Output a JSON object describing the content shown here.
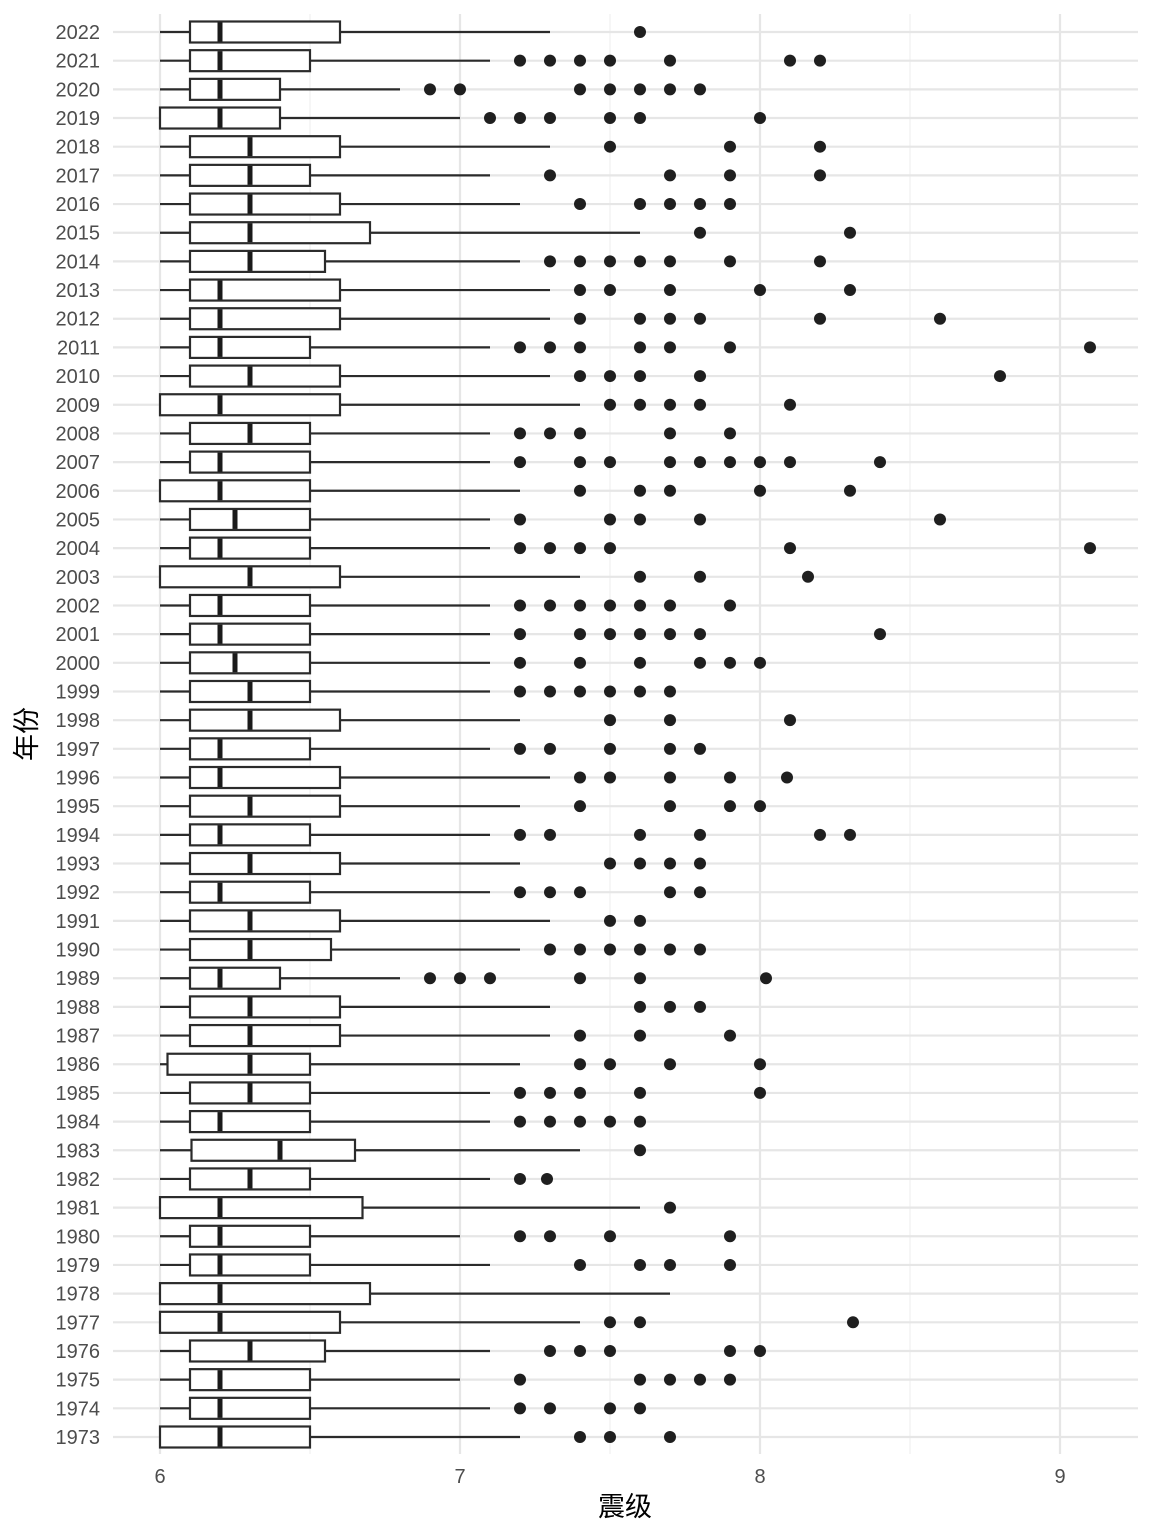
{
  "chart_data": {
    "type": "boxplot",
    "orientation": "horizontal",
    "title": "",
    "xlabel": "震级",
    "ylabel": "年份",
    "xlim": [
      5.85,
      9.25
    ],
    "x_ticks": [
      "6",
      "7",
      "8",
      "9"
    ],
    "grid": true,
    "legend": "none",
    "colors": {
      "box_fill": "#ffffff",
      "box_stroke": "#2b2b2b",
      "outlier": "#1f1f1f",
      "grid": "#e6e6e6"
    },
    "boxes": [
      {
        "year": "2022",
        "min": 6.0,
        "q1": 6.1,
        "median": 6.2,
        "q3": 6.6,
        "max": 7.3,
        "outliers": [
          7.6
        ]
      },
      {
        "year": "2021",
        "min": 6.0,
        "q1": 6.1,
        "median": 6.2,
        "q3": 6.5,
        "max": 7.1,
        "outliers": [
          7.2,
          7.3,
          7.4,
          7.5,
          7.7,
          8.1,
          8.2
        ]
      },
      {
        "year": "2020",
        "min": 6.0,
        "q1": 6.1,
        "median": 6.2,
        "q3": 6.4,
        "max": 6.8,
        "outliers": [
          6.9,
          7.0,
          7.4,
          7.5,
          7.6,
          7.7,
          7.8
        ]
      },
      {
        "year": "2019",
        "min": 6.0,
        "q1": 6.0,
        "median": 6.2,
        "q3": 6.4,
        "max": 7.0,
        "outliers": [
          7.1,
          7.2,
          7.3,
          7.5,
          7.6,
          8.0
        ]
      },
      {
        "year": "2018",
        "min": 6.0,
        "q1": 6.1,
        "median": 6.3,
        "q3": 6.6,
        "max": 7.3,
        "outliers": [
          7.5,
          7.9,
          8.2
        ]
      },
      {
        "year": "2017",
        "min": 6.0,
        "q1": 6.1,
        "median": 6.3,
        "q3": 6.5,
        "max": 7.1,
        "outliers": [
          7.3,
          7.7,
          7.9,
          8.2
        ]
      },
      {
        "year": "2016",
        "min": 6.0,
        "q1": 6.1,
        "median": 6.3,
        "q3": 6.6,
        "max": 7.2,
        "outliers": [
          7.4,
          7.6,
          7.7,
          7.8,
          7.9
        ]
      },
      {
        "year": "2015",
        "min": 6.0,
        "q1": 6.1,
        "median": 6.3,
        "q3": 6.7,
        "max": 7.6,
        "outliers": [
          7.8,
          8.3
        ]
      },
      {
        "year": "2014",
        "min": 6.0,
        "q1": 6.1,
        "median": 6.3,
        "q3": 6.55,
        "max": 7.2,
        "outliers": [
          7.3,
          7.4,
          7.5,
          7.6,
          7.7,
          7.9,
          8.2
        ]
      },
      {
        "year": "2013",
        "min": 6.0,
        "q1": 6.1,
        "median": 6.2,
        "q3": 6.6,
        "max": 7.3,
        "outliers": [
          7.4,
          7.5,
          7.7,
          8.0,
          8.3
        ]
      },
      {
        "year": "2012",
        "min": 6.0,
        "q1": 6.1,
        "median": 6.2,
        "q3": 6.6,
        "max": 7.3,
        "outliers": [
          7.4,
          7.6,
          7.7,
          7.8,
          8.2,
          8.6
        ]
      },
      {
        "year": "2011",
        "min": 6.0,
        "q1": 6.1,
        "median": 6.2,
        "q3": 6.5,
        "max": 7.1,
        "outliers": [
          7.2,
          7.3,
          7.4,
          7.6,
          7.7,
          7.9,
          9.1
        ]
      },
      {
        "year": "2010",
        "min": 6.0,
        "q1": 6.1,
        "median": 6.3,
        "q3": 6.6,
        "max": 7.3,
        "outliers": [
          7.4,
          7.5,
          7.6,
          7.8,
          8.8
        ]
      },
      {
        "year": "2009",
        "min": 6.0,
        "q1": 6.0,
        "median": 6.2,
        "q3": 6.6,
        "max": 7.4,
        "outliers": [
          7.5,
          7.6,
          7.7,
          7.8,
          8.1
        ]
      },
      {
        "year": "2008",
        "min": 6.0,
        "q1": 6.1,
        "median": 6.3,
        "q3": 6.5,
        "max": 7.1,
        "outliers": [
          7.2,
          7.3,
          7.4,
          7.7,
          7.9
        ]
      },
      {
        "year": "2007",
        "min": 6.0,
        "q1": 6.1,
        "median": 6.2,
        "q3": 6.5,
        "max": 7.1,
        "outliers": [
          7.2,
          7.4,
          7.5,
          7.7,
          7.8,
          7.9,
          8.0,
          8.1,
          8.4
        ]
      },
      {
        "year": "2006",
        "min": 6.0,
        "q1": 6.0,
        "median": 6.2,
        "q3": 6.5,
        "max": 7.2,
        "outliers": [
          7.4,
          7.6,
          7.7,
          8.0,
          8.3
        ]
      },
      {
        "year": "2005",
        "min": 6.0,
        "q1": 6.1,
        "median": 6.25,
        "q3": 6.5,
        "max": 7.1,
        "outliers": [
          7.2,
          7.5,
          7.6,
          7.8,
          8.6
        ]
      },
      {
        "year": "2004",
        "min": 6.0,
        "q1": 6.1,
        "median": 6.2,
        "q3": 6.5,
        "max": 7.1,
        "outliers": [
          7.2,
          7.3,
          7.4,
          7.5,
          8.1,
          9.1
        ]
      },
      {
        "year": "2003",
        "min": 6.0,
        "q1": 6.0,
        "median": 6.3,
        "q3": 6.6,
        "max": 7.4,
        "outliers": [
          7.6,
          7.8,
          8.16
        ]
      },
      {
        "year": "2002",
        "min": 6.0,
        "q1": 6.1,
        "median": 6.2,
        "q3": 6.5,
        "max": 7.1,
        "outliers": [
          7.2,
          7.3,
          7.4,
          7.5,
          7.6,
          7.7,
          7.9
        ]
      },
      {
        "year": "2001",
        "min": 6.0,
        "q1": 6.1,
        "median": 6.2,
        "q3": 6.5,
        "max": 7.1,
        "outliers": [
          7.2,
          7.4,
          7.5,
          7.6,
          7.7,
          7.8,
          8.4
        ]
      },
      {
        "year": "2000",
        "min": 6.0,
        "q1": 6.1,
        "median": 6.25,
        "q3": 6.5,
        "max": 7.1,
        "outliers": [
          7.2,
          7.4,
          7.6,
          7.8,
          7.9,
          8.0
        ]
      },
      {
        "year": "1999",
        "min": 6.0,
        "q1": 6.1,
        "median": 6.3,
        "q3": 6.5,
        "max": 7.1,
        "outliers": [
          7.2,
          7.3,
          7.4,
          7.5,
          7.6,
          7.7
        ]
      },
      {
        "year": "1998",
        "min": 6.0,
        "q1": 6.1,
        "median": 6.3,
        "q3": 6.6,
        "max": 7.2,
        "outliers": [
          7.5,
          7.7,
          8.1
        ]
      },
      {
        "year": "1997",
        "min": 6.0,
        "q1": 6.1,
        "median": 6.2,
        "q3": 6.5,
        "max": 7.1,
        "outliers": [
          7.2,
          7.3,
          7.5,
          7.7,
          7.8
        ]
      },
      {
        "year": "1996",
        "min": 6.0,
        "q1": 6.1,
        "median": 6.2,
        "q3": 6.6,
        "max": 7.3,
        "outliers": [
          7.4,
          7.5,
          7.7,
          7.9,
          8.09
        ]
      },
      {
        "year": "1995",
        "min": 6.0,
        "q1": 6.1,
        "median": 6.3,
        "q3": 6.6,
        "max": 7.2,
        "outliers": [
          7.4,
          7.7,
          7.9,
          8.0
        ]
      },
      {
        "year": "1994",
        "min": 6.0,
        "q1": 6.1,
        "median": 6.2,
        "q3": 6.5,
        "max": 7.1,
        "outliers": [
          7.2,
          7.3,
          7.6,
          7.8,
          8.2,
          8.3
        ]
      },
      {
        "year": "1993",
        "min": 6.0,
        "q1": 6.1,
        "median": 6.3,
        "q3": 6.6,
        "max": 7.2,
        "outliers": [
          7.5,
          7.6,
          7.7,
          7.8
        ]
      },
      {
        "year": "1992",
        "min": 6.0,
        "q1": 6.1,
        "median": 6.2,
        "q3": 6.5,
        "max": 7.1,
        "outliers": [
          7.2,
          7.3,
          7.4,
          7.7,
          7.8
        ]
      },
      {
        "year": "1991",
        "min": 6.0,
        "q1": 6.1,
        "median": 6.3,
        "q3": 6.6,
        "max": 7.3,
        "outliers": [
          7.5,
          7.6
        ]
      },
      {
        "year": "1990",
        "min": 6.0,
        "q1": 6.1,
        "median": 6.3,
        "q3": 6.57,
        "max": 7.2,
        "outliers": [
          7.3,
          7.4,
          7.5,
          7.6,
          7.7,
          7.8
        ]
      },
      {
        "year": "1989",
        "min": 6.0,
        "q1": 6.1,
        "median": 6.2,
        "q3": 6.4,
        "max": 6.8,
        "outliers": [
          6.9,
          7.0,
          7.1,
          7.4,
          7.6,
          8.02
        ]
      },
      {
        "year": "1988",
        "min": 6.0,
        "q1": 6.1,
        "median": 6.3,
        "q3": 6.6,
        "max": 7.3,
        "outliers": [
          7.6,
          7.7,
          7.8
        ]
      },
      {
        "year": "1987",
        "min": 6.0,
        "q1": 6.1,
        "median": 6.3,
        "q3": 6.6,
        "max": 7.3,
        "outliers": [
          7.4,
          7.6,
          7.9
        ]
      },
      {
        "year": "1986",
        "min": 6.0,
        "q1": 6.025,
        "median": 6.3,
        "q3": 6.5,
        "max": 7.2,
        "outliers": [
          7.4,
          7.5,
          7.7,
          8.0
        ]
      },
      {
        "year": "1985",
        "min": 6.0,
        "q1": 6.1,
        "median": 6.3,
        "q3": 6.5,
        "max": 7.1,
        "outliers": [
          7.2,
          7.3,
          7.4,
          7.6,
          8.0
        ]
      },
      {
        "year": "1984",
        "min": 6.0,
        "q1": 6.1,
        "median": 6.2,
        "q3": 6.5,
        "max": 7.1,
        "outliers": [
          7.2,
          7.3,
          7.4,
          7.5,
          7.6
        ]
      },
      {
        "year": "1983",
        "min": 6.0,
        "q1": 6.105,
        "median": 6.4,
        "q3": 6.65,
        "max": 7.4,
        "outliers": [
          7.6
        ]
      },
      {
        "year": "1982",
        "min": 6.0,
        "q1": 6.1,
        "median": 6.3,
        "q3": 6.5,
        "max": 7.1,
        "outliers": [
          7.2,
          7.29
        ]
      },
      {
        "year": "1981",
        "min": 6.0,
        "q1": 6.0,
        "median": 6.2,
        "q3": 6.675,
        "max": 7.6,
        "outliers": [
          7.7
        ]
      },
      {
        "year": "1980",
        "min": 6.0,
        "q1": 6.1,
        "median": 6.2,
        "q3": 6.5,
        "max": 7.0,
        "outliers": [
          7.2,
          7.3,
          7.5,
          7.9
        ]
      },
      {
        "year": "1979",
        "min": 6.0,
        "q1": 6.1,
        "median": 6.2,
        "q3": 6.5,
        "max": 7.1,
        "outliers": [
          7.4,
          7.6,
          7.7,
          7.9
        ]
      },
      {
        "year": "1978",
        "min": 6.0,
        "q1": 6.0,
        "median": 6.2,
        "q3": 6.7,
        "max": 7.7,
        "outliers": []
      },
      {
        "year": "1977",
        "min": 6.0,
        "q1": 6.0,
        "median": 6.2,
        "q3": 6.6,
        "max": 7.4,
        "outliers": [
          7.5,
          7.6,
          8.31
        ]
      },
      {
        "year": "1976",
        "min": 6.0,
        "q1": 6.1,
        "median": 6.3,
        "q3": 6.55,
        "max": 7.1,
        "outliers": [
          7.3,
          7.4,
          7.5,
          7.9,
          8.0
        ]
      },
      {
        "year": "1975",
        "min": 6.0,
        "q1": 6.1,
        "median": 6.2,
        "q3": 6.5,
        "max": 7.0,
        "outliers": [
          7.2,
          7.6,
          7.7,
          7.8,
          7.9
        ]
      },
      {
        "year": "1974",
        "min": 6.0,
        "q1": 6.1,
        "median": 6.2,
        "q3": 6.5,
        "max": 7.1,
        "outliers": [
          7.2,
          7.3,
          7.5,
          7.6
        ]
      },
      {
        "year": "1973",
        "min": 6.0,
        "q1": 6.0,
        "median": 6.2,
        "q3": 6.5,
        "max": 7.2,
        "outliers": [
          7.4,
          7.5,
          7.7
        ]
      }
    ]
  }
}
